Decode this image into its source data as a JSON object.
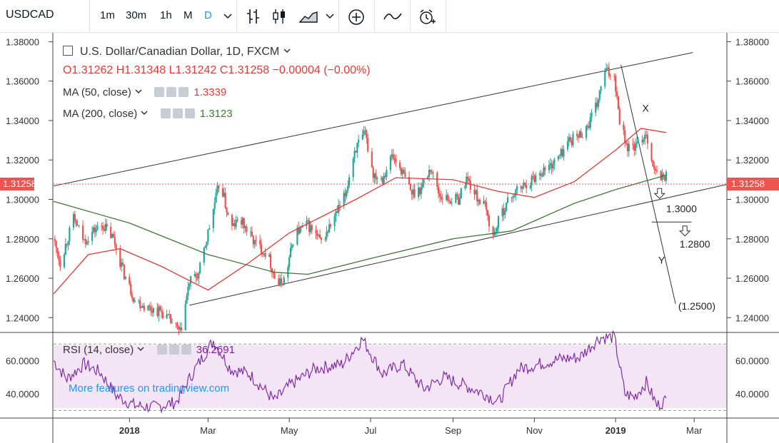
{
  "toolbar": {
    "symbol": "USDCAD",
    "intervals": [
      "1m",
      "30m",
      "1h",
      "M",
      "D"
    ],
    "active_interval": "D"
  },
  "legend": {
    "title": "U.S. Dollar/Canadian Dollar, 1D, FXCM",
    "ohlc": "O1.31262 H1.31348 L1.31242 C1.31258 −0.00004 (−0.00%)",
    "ma50_label": "MA (50, close)",
    "ma50_value": "1.3339",
    "ma200_label": "MA (200, close)",
    "ma200_value": "1.3123",
    "rsi_label": "RSI (14, close)",
    "rsi_value": "36.2691"
  },
  "promo": "More features on tradingview.com",
  "colors": {
    "up": "#26a69a",
    "down": "#ef5350",
    "ma50": "#e53935",
    "ma200": "#3f7a33",
    "rsi_line": "#7b1fa2",
    "rsi_band": "#f3e5f5",
    "price_tag": "#ef5350"
  },
  "chart_data": {
    "type": "candlestick",
    "instrument": "USDCAD",
    "timeframe": "1D",
    "last_price": "1.31258",
    "price_axis": {
      "ticks": [
        "1.38000",
        "1.36000",
        "1.34000",
        "1.32000",
        "1.30000",
        "1.28000",
        "1.26000",
        "1.24000"
      ],
      "range": [
        1.2325,
        1.3845
      ]
    },
    "rsi_axis": {
      "ticks": [
        "60.0000",
        "40.0000"
      ],
      "range": [
        25.5,
        77.0
      ]
    },
    "x_labels": [
      "2018",
      "Mar",
      "May",
      "Jul",
      "Sep",
      "Nov",
      "2019",
      "Mar"
    ],
    "x_range": [
      "2017-11-05",
      "2019-03-25"
    ],
    "annotations": [
      {
        "text": "X",
        "x": "2019-01-21",
        "y": 1.3445
      },
      {
        "text": "1.3000",
        "x": "2019-02-08",
        "y": 1.2935
      },
      {
        "text": "1.2800",
        "x": "2019-02-18",
        "y": 1.2755
      },
      {
        "text": "Y",
        "x": "2019-02-02",
        "y": 1.2675
      },
      {
        "text": "(1.2500)",
        "x": "2019-02-17",
        "y": 1.244
      }
    ],
    "trendlines": [
      {
        "name": "upper-channel",
        "from": {
          "x": "2017-11-05",
          "y": 1.3068
        },
        "to": {
          "x": "2019-02-28",
          "y": 1.3745
        }
      },
      {
        "name": "lower-channel",
        "from": {
          "x": "2018-02-15",
          "y": 1.2463
        },
        "to": {
          "x": "2019-03-25",
          "y": 1.3075
        }
      },
      {
        "name": "y-projection",
        "from": {
          "x": "2019-01-05",
          "y": 1.3683
        },
        "to": {
          "x": "2019-02-15",
          "y": 1.247
        }
      }
    ],
    "arrows": [
      {
        "x": "2019-02-03",
        "y": 1.3055,
        "direction": "down"
      },
      {
        "x": "2019-02-22",
        "y": 1.2865,
        "direction": "down"
      }
    ],
    "candle_path": [
      [
        "2017-11-05",
        1.28
      ],
      [
        "2017-11-10",
        1.268
      ],
      [
        "2017-11-20",
        1.29
      ],
      [
        "2017-11-28",
        1.279
      ],
      [
        "2017-12-05",
        1.284
      ],
      [
        "2017-12-12",
        1.287
      ],
      [
        "2017-12-20",
        1.28
      ],
      [
        "2017-12-28",
        1.262
      ],
      [
        "2018-01-05",
        1.249
      ],
      [
        "2018-01-15",
        1.245
      ],
      [
        "2018-01-25",
        1.243
      ],
      [
        "2018-02-01",
        1.238
      ],
      [
        "2018-02-08",
        1.232
      ],
      [
        "2018-02-15",
        1.258
      ],
      [
        "2018-02-22",
        1.262
      ],
      [
        "2018-02-28",
        1.28
      ],
      [
        "2018-03-05",
        1.295
      ],
      [
        "2018-03-10",
        1.31
      ],
      [
        "2018-03-18",
        1.285
      ],
      [
        "2018-03-25",
        1.29
      ],
      [
        "2018-04-05",
        1.278
      ],
      [
        "2018-04-15",
        1.272
      ],
      [
        "2018-04-22",
        1.256
      ],
      [
        "2018-04-28",
        1.26
      ],
      [
        "2018-05-05",
        1.283
      ],
      [
        "2018-05-15",
        1.287
      ],
      [
        "2018-05-25",
        1.278
      ],
      [
        "2018-06-05",
        1.292
      ],
      [
        "2018-06-12",
        1.302
      ],
      [
        "2018-06-19",
        1.325
      ],
      [
        "2018-06-27",
        1.333
      ],
      [
        "2018-07-03",
        1.313
      ],
      [
        "2018-07-10",
        1.311
      ],
      [
        "2018-07-17",
        1.322
      ],
      [
        "2018-07-24",
        1.315
      ],
      [
        "2018-08-01",
        1.303
      ],
      [
        "2018-08-08",
        1.306
      ],
      [
        "2018-08-15",
        1.316
      ],
      [
        "2018-08-22",
        1.302
      ],
      [
        "2018-08-29",
        1.3
      ],
      [
        "2018-09-05",
        1.3
      ],
      [
        "2018-09-11",
        1.311
      ],
      [
        "2018-09-18",
        1.302
      ],
      [
        "2018-09-25",
        1.296
      ],
      [
        "2018-10-01",
        1.281
      ],
      [
        "2018-10-08",
        1.294
      ],
      [
        "2018-10-15",
        1.302
      ],
      [
        "2018-10-22",
        1.306
      ],
      [
        "2018-10-30",
        1.31
      ],
      [
        "2018-11-06",
        1.314
      ],
      [
        "2018-11-13",
        1.317
      ],
      [
        "2018-11-20",
        1.322
      ],
      [
        "2018-11-27",
        1.33
      ],
      [
        "2018-12-04",
        1.332
      ],
      [
        "2018-12-11",
        1.337
      ],
      [
        "2018-12-18",
        1.348
      ],
      [
        "2018-12-24",
        1.365
      ],
      [
        "2018-12-31",
        1.363
      ],
      [
        "2019-01-04",
        1.341
      ],
      [
        "2019-01-10",
        1.326
      ],
      [
        "2019-01-17",
        1.327
      ],
      [
        "2019-01-24",
        1.334
      ],
      [
        "2019-01-30",
        1.314
      ],
      [
        "2019-02-04",
        1.311
      ],
      [
        "2019-02-08",
        1.312
      ]
    ],
    "ma200_path": [
      [
        "2017-11-05",
        1.299
      ],
      [
        "2018-01-01",
        1.288
      ],
      [
        "2018-03-01",
        1.272
      ],
      [
        "2018-04-20",
        1.263
      ],
      [
        "2018-05-15",
        1.262
      ],
      [
        "2018-07-01",
        1.27
      ],
      [
        "2018-09-01",
        1.28
      ],
      [
        "2018-10-15",
        1.284
      ],
      [
        "2018-12-01",
        1.298
      ],
      [
        "2019-01-01",
        1.305
      ],
      [
        "2019-02-08",
        1.3123
      ]
    ],
    "ma50_path": [
      [
        "2017-11-05",
        1.252
      ],
      [
        "2017-12-01",
        1.272
      ],
      [
        "2017-12-25",
        1.275
      ],
      [
        "2018-01-25",
        1.266
      ],
      [
        "2018-03-01",
        1.254
      ],
      [
        "2018-04-01",
        1.268
      ],
      [
        "2018-05-01",
        1.283
      ],
      [
        "2018-06-20",
        1.3
      ],
      [
        "2018-07-20",
        1.311
      ],
      [
        "2018-09-01",
        1.31
      ],
      [
        "2018-10-05",
        1.304
      ],
      [
        "2018-11-01",
        1.301
      ],
      [
        "2018-12-01",
        1.309
      ],
      [
        "2019-01-01",
        1.325
      ],
      [
        "2019-01-20",
        1.336
      ],
      [
        "2019-02-08",
        1.3339
      ]
    ],
    "rsi_path": [
      [
        "2017-11-05",
        60
      ],
      [
        "2017-11-15",
        49
      ],
      [
        "2017-11-28",
        58
      ],
      [
        "2017-12-10",
        53
      ],
      [
        "2017-12-22",
        39
      ],
      [
        "2018-01-05",
        33
      ],
      [
        "2018-01-20",
        32
      ],
      [
        "2018-02-05",
        35
      ],
      [
        "2018-02-20",
        56
      ],
      [
        "2018-03-05",
        72
      ],
      [
        "2018-03-18",
        55
      ],
      [
        "2018-04-01",
        52
      ],
      [
        "2018-04-20",
        36
      ],
      [
        "2018-05-01",
        45
      ],
      [
        "2018-05-20",
        55
      ],
      [
        "2018-06-10",
        58
      ],
      [
        "2018-06-25",
        73
      ],
      [
        "2018-07-10",
        52
      ],
      [
        "2018-07-25",
        58
      ],
      [
        "2018-08-10",
        43
      ],
      [
        "2018-08-25",
        50
      ],
      [
        "2018-09-10",
        45
      ],
      [
        "2018-09-25",
        40
      ],
      [
        "2018-10-05",
        35
      ],
      [
        "2018-10-20",
        55
      ],
      [
        "2018-11-05",
        58
      ],
      [
        "2018-11-20",
        61
      ],
      [
        "2018-12-05",
        62
      ],
      [
        "2018-12-20",
        74
      ],
      [
        "2018-12-31",
        74
      ],
      [
        "2019-01-08",
        40
      ],
      [
        "2019-01-15",
        38
      ],
      [
        "2019-01-24",
        47
      ],
      [
        "2019-02-01",
        33
      ],
      [
        "2019-02-08",
        36.27
      ]
    ]
  }
}
